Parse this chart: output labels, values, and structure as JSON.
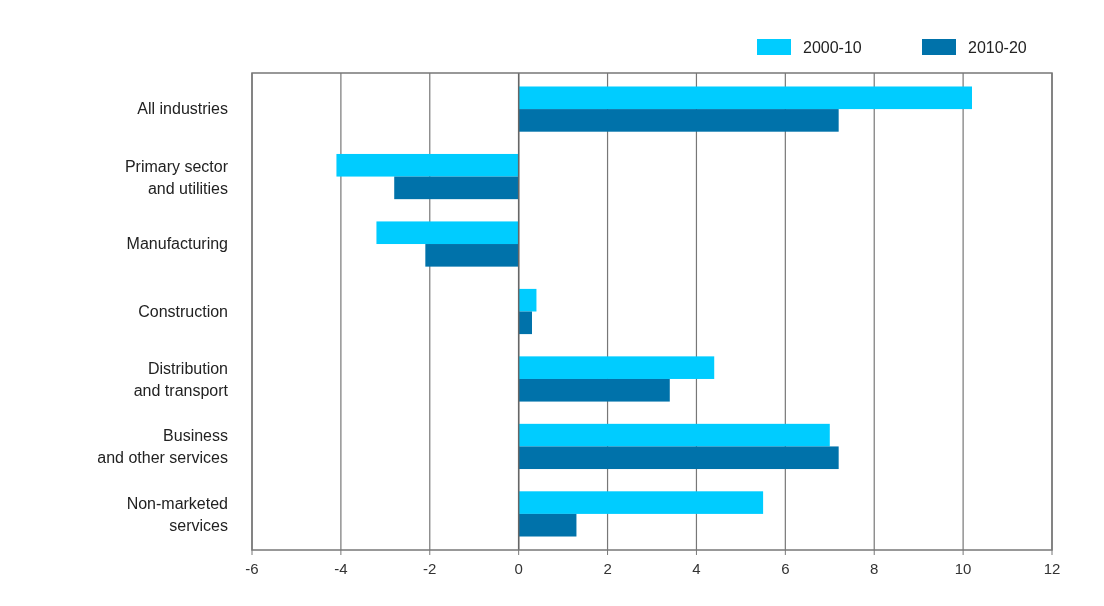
{
  "chart_data": {
    "type": "bar",
    "orientation": "horizontal",
    "categories": [
      "All industries",
      "Primary sector\nand utilities",
      "Manufacturing",
      "Construction",
      "Distribution\nand transport",
      "Business\nand other services",
      "Non-marketed\nservices"
    ],
    "series": [
      {
        "name": "2000-10",
        "color": "#00ccff",
        "values": [
          10.2,
          -4.1,
          -3.2,
          0.4,
          4.4,
          7.0,
          5.5
        ]
      },
      {
        "name": "2010-20",
        "color": "#0072aa",
        "values": [
          7.2,
          -2.8,
          -2.1,
          0.3,
          3.4,
          7.2,
          1.3
        ]
      }
    ],
    "xlim": [
      -6,
      12
    ],
    "xticks": [
      -6,
      -4,
      -2,
      0,
      2,
      4,
      6,
      8,
      10,
      12
    ],
    "grid": "x",
    "legend": "top right"
  }
}
